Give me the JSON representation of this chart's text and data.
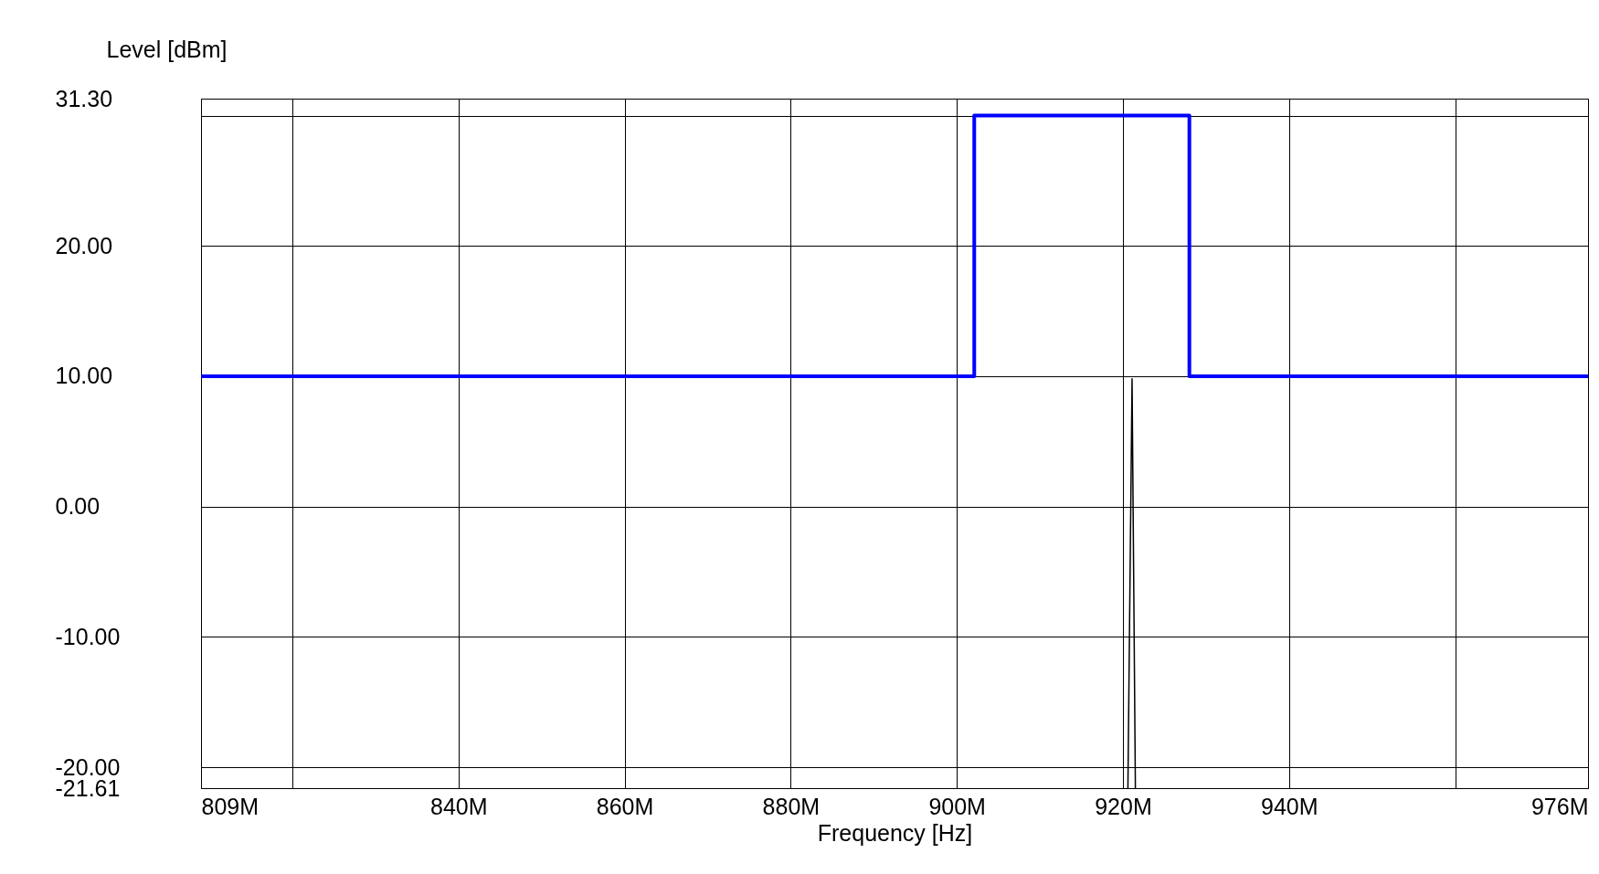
{
  "chart_data": {
    "type": "line",
    "xlabel": "Frequency [Hz]",
    "ylabel": "Level [dBm]",
    "xlim": [
      809,
      976
    ],
    "ylim": [
      -21.61,
      31.3
    ],
    "xticks": [
      {
        "value": 809,
        "label": "809M"
      },
      {
        "value": 820,
        "label": null
      },
      {
        "value": 840,
        "label": "840M"
      },
      {
        "value": 860,
        "label": "860M"
      },
      {
        "value": 880,
        "label": "880M"
      },
      {
        "value": 900,
        "label": "900M"
      },
      {
        "value": 920,
        "label": "920M"
      },
      {
        "value": 940,
        "label": "940M"
      },
      {
        "value": 960,
        "label": null
      },
      {
        "value": 976,
        "label": "976M"
      }
    ],
    "yticks": [
      {
        "value": -21.61,
        "label": "-21.61"
      },
      {
        "value": -20,
        "label": "-20.00"
      },
      {
        "value": -10,
        "label": "-10.00"
      },
      {
        "value": 0,
        "label": "0.00"
      },
      {
        "value": 10,
        "label": "10.00"
      },
      {
        "value": 20,
        "label": "20.00"
      },
      {
        "value": 30,
        "label": null
      },
      {
        "value": 31.3,
        "label": "31.30"
      }
    ],
    "grid": true,
    "marker": "none",
    "line_style": "solid",
    "series": [
      {
        "color": "#0000ff",
        "x": [
          809,
          902.1,
          902.1,
          928,
          928,
          976
        ],
        "values": [
          10,
          10,
          30,
          30,
          10,
          10
        ]
      },
      {
        "color": "#000000",
        "x": [
          920.6,
          921.1,
          921.5
        ],
        "values": [
          -21.61,
          9.8,
          -21.61
        ]
      }
    ]
  }
}
